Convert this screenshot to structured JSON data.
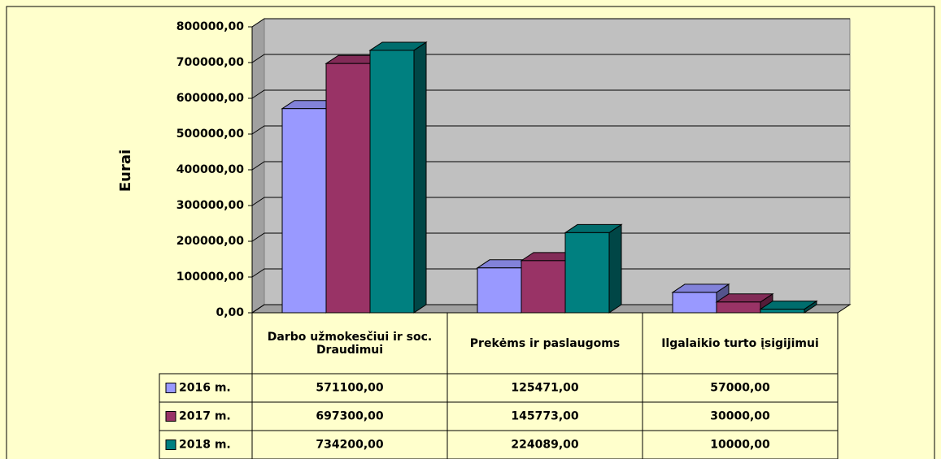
{
  "chart_data": {
    "type": "bar3d",
    "y_label": "Eurai",
    "categories": [
      "Darbo užmokesčiui ir soc. Draudimui",
      "Prekėms ir paslaugoms",
      "Ilgalaikio turto įsigijimui"
    ],
    "series": [
      {
        "name": "2016 m.",
        "color": "#9999ff",
        "values": [
          571100,
          125471,
          57000
        ],
        "value_labels": [
          "571100,00",
          "125471,00",
          "57000,00"
        ]
      },
      {
        "name": "2017 m.",
        "color": "#993366",
        "values": [
          697300,
          145773,
          30000
        ],
        "value_labels": [
          "697300,00",
          "145773,00",
          "30000,00"
        ]
      },
      {
        "name": "2018 m.",
        "color": "#008080",
        "values": [
          734200,
          224089,
          10000
        ],
        "value_labels": [
          "734200,00",
          "224089,00",
          "10000,00"
        ]
      }
    ],
    "ylim": [
      0,
      800000
    ],
    "yticks": [
      {
        "value": 0,
        "label": "0,00"
      },
      {
        "value": 100000,
        "label": "100000,00"
      },
      {
        "value": 200000,
        "label": "200000,00"
      },
      {
        "value": 300000,
        "label": "300000,00"
      },
      {
        "value": 400000,
        "label": "400000,00"
      },
      {
        "value": 500000,
        "label": "500000,00"
      },
      {
        "value": 600000,
        "label": "600000,00"
      },
      {
        "value": 700000,
        "label": "700000,00"
      },
      {
        "value": 800000,
        "label": "800000,00"
      }
    ],
    "grid": true
  }
}
